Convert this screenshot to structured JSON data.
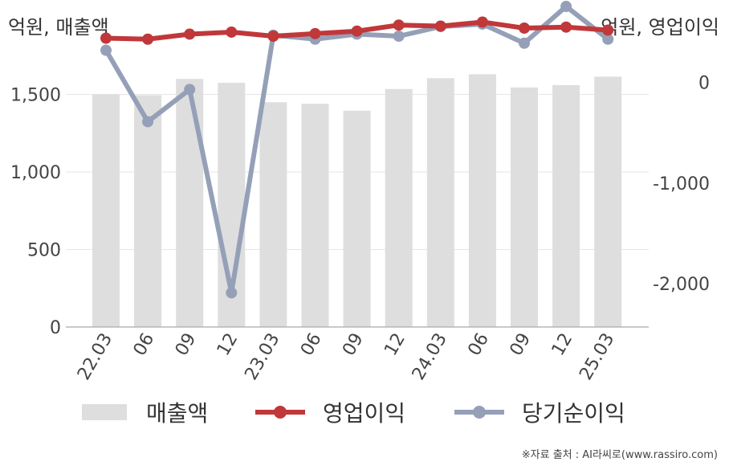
{
  "units": {
    "left": "억원, 매출액",
    "right": "억원, 영업이익"
  },
  "source": "※자료 출처 : AI라씨로(www.rassiro.com)",
  "chart_data": {
    "type": "bar+line",
    "categories": [
      "22.03",
      "06",
      "09",
      "12",
      "23.03",
      "06",
      "09",
      "12",
      "24.03",
      "06",
      "09",
      "12",
      "25.03"
    ],
    "left_axis": {
      "ticks": [
        0,
        500,
        1000,
        1500
      ],
      "tick_labels": [
        "0",
        "500",
        "1,000",
        "1,500"
      ],
      "ylim": [
        0,
        1850
      ]
    },
    "right_axis": {
      "ticks": [
        0,
        -1000,
        -2000
      ],
      "tick_labels": [
        "0",
        "-1,000",
        "-2,000"
      ],
      "ylim": [
        -2430,
        420
      ]
    },
    "grid": true,
    "legend_position": "bottom",
    "series": [
      {
        "name": "매출액",
        "kind": "bar",
        "axis": "left",
        "color": "#dedede",
        "values": [
          1500,
          1495,
          1600,
          1575,
          1450,
          1440,
          1395,
          1535,
          1605,
          1630,
          1545,
          1560,
          1615
        ]
      },
      {
        "name": "영업이익",
        "kind": "line",
        "axis": "right",
        "color": "#c0383a",
        "values": [
          440,
          430,
          480,
          500,
          460,
          485,
          510,
          570,
          560,
          600,
          540,
          550,
          520
        ]
      },
      {
        "name": "당기순이익",
        "kind": "line",
        "axis": "right",
        "color": "#95a0b8",
        "values": [
          320,
          -390,
          -70,
          -2090,
          470,
          430,
          480,
          460,
          555,
          580,
          390,
          755,
          430
        ]
      }
    ]
  }
}
